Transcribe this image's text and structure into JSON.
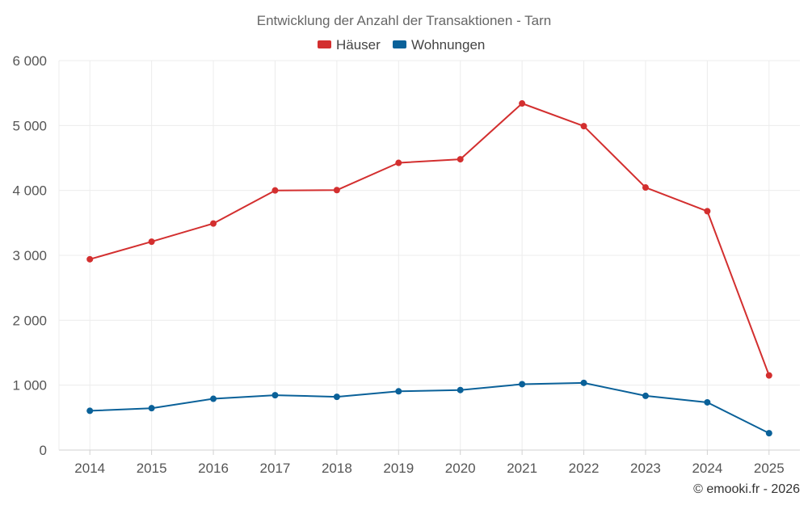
{
  "chart_data": {
    "type": "line",
    "title": "Entwicklung der Anzahl der Transaktionen - Tarn",
    "categories": [
      "2014",
      "2015",
      "2016",
      "2017",
      "2018",
      "2019",
      "2020",
      "2021",
      "2022",
      "2023",
      "2024",
      "2025"
    ],
    "series": [
      {
        "name": "Häuser",
        "color": "#d32f2f",
        "values": [
          2940,
          3210,
          3490,
          4000,
          4005,
          4425,
          4480,
          5340,
          4990,
          4045,
          3680,
          1150
        ]
      },
      {
        "name": "Wohnungen",
        "color": "#0a6199",
        "values": [
          605,
          645,
          790,
          845,
          820,
          905,
          925,
          1015,
          1035,
          835,
          735,
          260
        ]
      }
    ],
    "ylim": [
      0,
      6000
    ],
    "yticks": [
      0,
      1000,
      2000,
      3000,
      4000,
      5000,
      6000
    ],
    "ytick_labels": [
      "0",
      "1 000",
      "2 000",
      "3 000",
      "4 000",
      "5 000",
      "6 000"
    ],
    "xlabel": "",
    "ylabel": "",
    "legend_position": "top-center",
    "grid": true
  },
  "credit": "© emooki.fr - 2026"
}
